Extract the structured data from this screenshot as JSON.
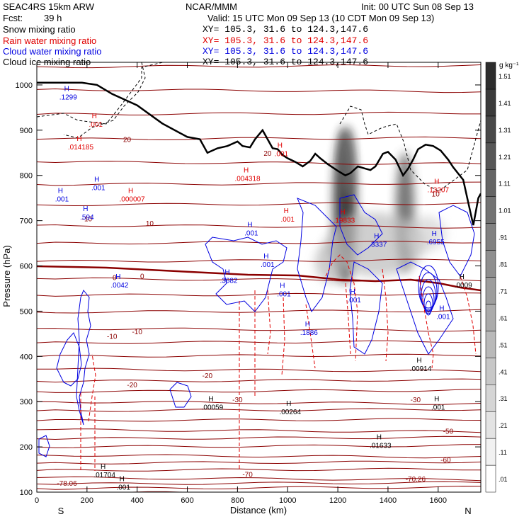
{
  "header": {
    "run": "SEAC4RS 15km ARW",
    "center": "NCAR/MMM",
    "init": "Init: 00 UTC Sun 08 Sep 13",
    "fcst_label": "Fcst:",
    "fcst_value": "39 h",
    "valid": "Valid: 15 UTC Mon 09 Sep 13 (10 CDT Mon 09 Sep 13)",
    "fields": [
      {
        "label": "Snow mixing ratio",
        "xy": "XY= 105.3, 31.6 to 124.3,147.6",
        "color": "#000000"
      },
      {
        "label": "Rain water mixing ratio",
        "xy": "XY= 105.3, 31.6 to 124.3,147.6",
        "color": "#e00000"
      },
      {
        "label": "Cloud water mixing ratio",
        "xy": "XY= 105.3, 31.6 to 124.3,147.6",
        "color": "#0000e0"
      },
      {
        "label": "Cloud ice mixing ratio",
        "xy": "XY= 105.3, 31.6 to 124.3,147.6",
        "color": "#000000"
      }
    ]
  },
  "chart_data": {
    "type": "cross-section",
    "xlabel": "Distance (km)",
    "ylabel": "Pressure (hPa)",
    "xlim": [
      0,
      1770
    ],
    "ylim": [
      1050,
      100
    ],
    "x_ticks": [
      0,
      200,
      400,
      600,
      800,
      1000,
      1200,
      1400,
      1600
    ],
    "y_ticks": [
      200,
      300,
      400,
      500,
      600,
      700,
      800,
      900,
      1000
    ],
    "y_tick_labels": [
      "200",
      "300",
      "400",
      "500",
      "600",
      "700",
      "800",
      "900",
      "1000"
    ],
    "y_top_label": "100",
    "endpoints": {
      "left": "S",
      "right": "N"
    },
    "colorbar": {
      "unit": "g kg⁻¹",
      "levels": [
        ".01",
        ".11",
        ".21",
        ".31",
        ".41",
        ".51",
        ".61",
        ".71",
        ".81",
        ".91",
        "1.01",
        "1.11",
        "1.21",
        "1.31",
        "1.41",
        "1.51"
      ]
    },
    "terrain": [
      [
        0,
        1005
      ],
      [
        180,
        1005
      ],
      [
        240,
        1000
      ],
      [
        300,
        980
      ],
      [
        400,
        955
      ],
      [
        500,
        915
      ],
      [
        600,
        885
      ],
      [
        650,
        880
      ],
      [
        680,
        850
      ],
      [
        720,
        860
      ],
      [
        760,
        865
      ],
      [
        800,
        875
      ],
      [
        820,
        865
      ],
      [
        850,
        862
      ],
      [
        870,
        880
      ],
      [
        900,
        900
      ],
      [
        920,
        880
      ],
      [
        940,
        860
      ],
      [
        960,
        858
      ],
      [
        980,
        845
      ],
      [
        1000,
        838
      ],
      [
        1030,
        830
      ],
      [
        1060,
        820
      ],
      [
        1090,
        832
      ],
      [
        1110,
        848
      ],
      [
        1130,
        838
      ],
      [
        1160,
        825
      ],
      [
        1200,
        810
      ],
      [
        1230,
        800
      ],
      [
        1250,
        805
      ],
      [
        1280,
        820
      ],
      [
        1310,
        815
      ],
      [
        1330,
        812
      ],
      [
        1350,
        820
      ],
      [
        1380,
        848
      ],
      [
        1400,
        852
      ],
      [
        1430,
        835
      ],
      [
        1460,
        800
      ],
      [
        1480,
        815
      ],
      [
        1500,
        835
      ],
      [
        1520,
        858
      ],
      [
        1550,
        868
      ],
      [
        1580,
        865
      ],
      [
        1610,
        855
      ],
      [
        1640,
        835
      ],
      [
        1660,
        818
      ],
      [
        1700,
        790
      ],
      [
        1720,
        740
      ],
      [
        1740,
        690
      ],
      [
        1760,
        750
      ],
      [
        1770,
        760
      ]
    ],
    "isotherms_labels": [
      {
        "text": "-78.06",
        "x": 120,
        "p": 120
      },
      {
        "text": "-70",
        "x": 840,
        "p": 140
      },
      {
        "text": "-70.26",
        "x": 1510,
        "p": 130
      },
      {
        "text": "-60",
        "x": 1630,
        "p": 172
      },
      {
        "text": "-50",
        "x": 1640,
        "p": 235
      },
      {
        "text": "-30",
        "x": 800,
        "p": 305
      },
      {
        "text": "-30",
        "x": 1510,
        "p": 305
      },
      {
        "text": "-20",
        "x": 380,
        "p": 338
      },
      {
        "text": "-20",
        "x": 680,
        "p": 358
      },
      {
        "text": "-10",
        "x": 300,
        "p": 445
      },
      {
        "text": "-10",
        "x": 400,
        "p": 455
      },
      {
        "text": "0",
        "x": 310,
        "p": 575
      },
      {
        "text": "0",
        "x": 420,
        "p": 578
      },
      {
        "text": "-10",
        "x": 200,
        "p": 705
      },
      {
        "text": "10",
        "x": 450,
        "p": 695
      },
      {
        "text": "10",
        "x": 1590,
        "p": 760
      },
      {
        "text": "20",
        "x": 360,
        "p": 880
      },
      {
        "text": "20",
        "x": 920,
        "p": 850
      }
    ],
    "max_labels": [
      {
        "value": ".001",
        "x": 345,
        "p": 118,
        "color": "#000000"
      },
      {
        "value": ".01704",
        "x": 270,
        "p": 145,
        "color": "#000000"
      },
      {
        "value": ".01633",
        "x": 1370,
        "p": 210,
        "color": "#000000"
      },
      {
        "value": ".00059",
        "x": 700,
        "p": 295,
        "color": "#000000"
      },
      {
        "value": ".00264",
        "x": 1010,
        "p": 285,
        "color": "#000000"
      },
      {
        "value": ".001",
        "x": 1600,
        "p": 295,
        "color": "#000000"
      },
      {
        "value": ".00914",
        "x": 1530,
        "p": 380,
        "color": "#000000"
      },
      {
        "value": ".0009",
        "x": 1700,
        "p": 565,
        "color": "#000000"
      },
      {
        "value": ".1886",
        "x": 1085,
        "p": 460,
        "color": "#0000e0"
      },
      {
        "value": ".001",
        "x": 1620,
        "p": 495,
        "color": "#0000e0"
      },
      {
        "value": ".001",
        "x": 1265,
        "p": 532,
        "color": "#0000e0"
      },
      {
        "value": ".001",
        "x": 985,
        "p": 545,
        "color": "#0000e0"
      },
      {
        "value": ".0042",
        "x": 330,
        "p": 565,
        "color": "#0000e0"
      },
      {
        "value": ".3682",
        "x": 765,
        "p": 575,
        "color": "#0000e0"
      },
      {
        "value": ".001",
        "x": 920,
        "p": 610,
        "color": "#0000e0"
      },
      {
        "value": ".3337",
        "x": 1360,
        "p": 655,
        "color": "#0000e0"
      },
      {
        "value": ".6955",
        "x": 1590,
        "p": 660,
        "color": "#0000e0"
      },
      {
        "value": ".001",
        "x": 855,
        "p": 680,
        "color": "#0000e0"
      },
      {
        "value": ".594",
        "x": 200,
        "p": 715,
        "color": "#0000e0"
      },
      {
        "value": ".001",
        "x": 100,
        "p": 755,
        "color": "#0000e0"
      },
      {
        "value": ".001",
        "x": 245,
        "p": 780,
        "color": "#0000e0"
      },
      {
        "value": ".1299",
        "x": 125,
        "p": 980,
        "color": "#0000e0"
      },
      {
        "value": ".001",
        "x": 1000,
        "p": 710,
        "color": "#e00000"
      },
      {
        "value": ".19833",
        "x": 1225,
        "p": 708,
        "color": "#e00000"
      },
      {
        "value": ".000007",
        "x": 380,
        "p": 755,
        "color": "#e00000"
      },
      {
        "value": ".13207",
        "x": 1600,
        "p": 775,
        "color": "#e00000"
      },
      {
        "value": ".004318",
        "x": 840,
        "p": 800,
        "color": "#e00000"
      },
      {
        "value": ".001",
        "x": 975,
        "p": 855,
        "color": "#e00000"
      },
      {
        "value": ".014185",
        "x": 175,
        "p": 870,
        "color": "#e00000"
      },
      {
        "value": ".001",
        "x": 235,
        "p": 920,
        "color": "#e00000"
      }
    ]
  }
}
